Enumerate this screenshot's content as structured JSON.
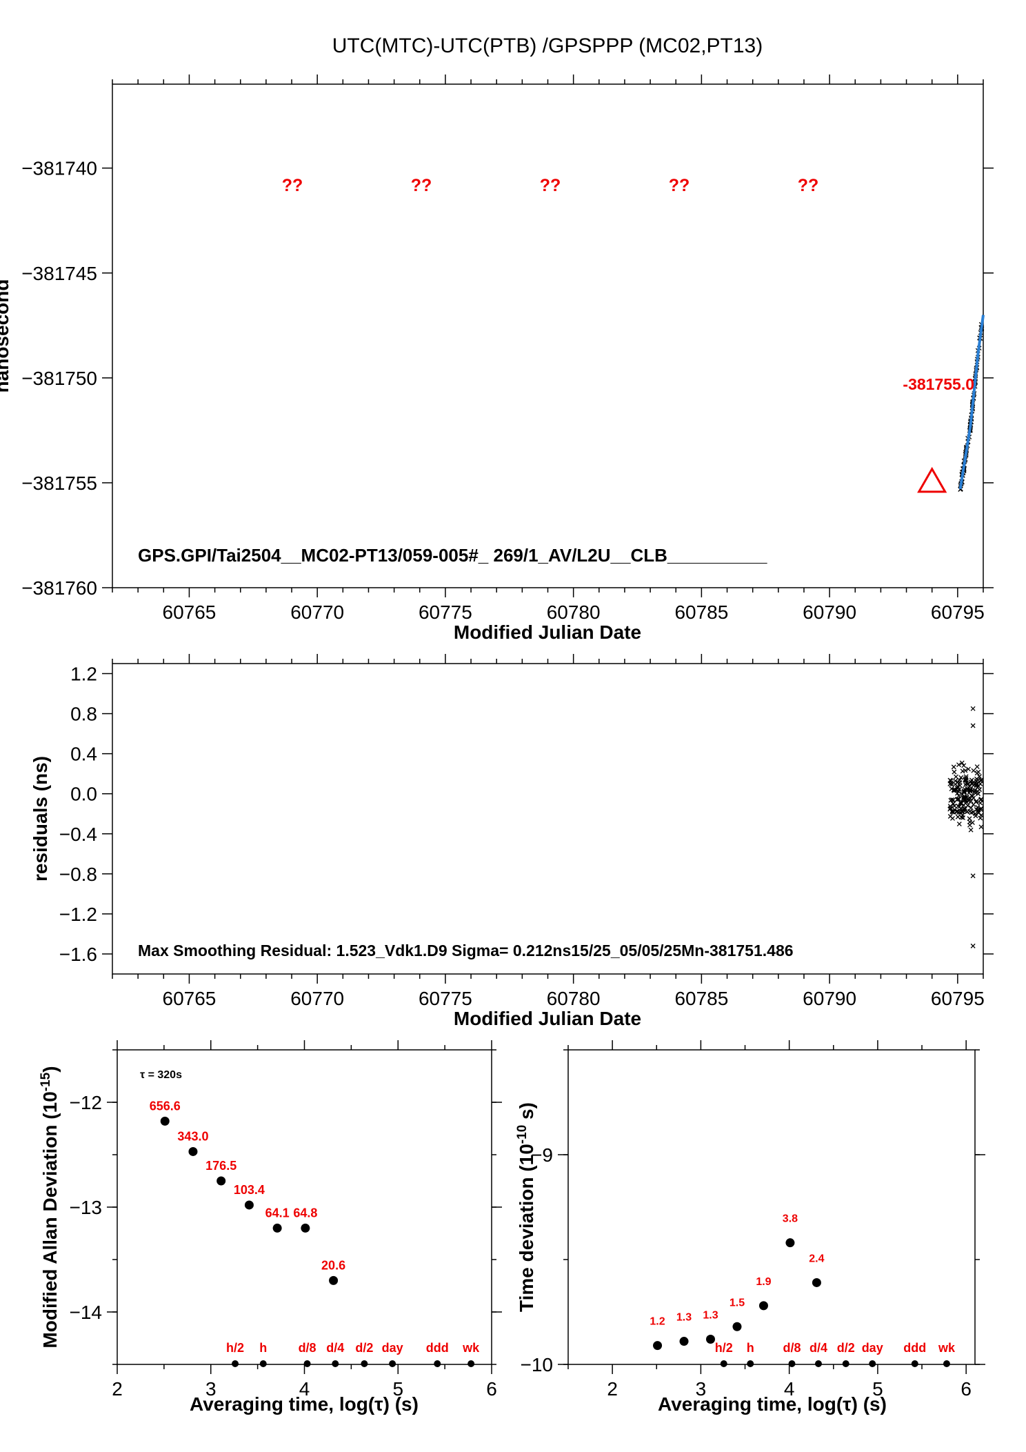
{
  "title": "UTC(MTC)-UTC(PTB)  /GPSPPP  (MC02,PT13)",
  "colors": {
    "marker": "#ee0000",
    "fit": "#2a7fd4",
    "points": "#000000"
  },
  "chart_data": [
    {
      "type": "scatter",
      "name": "time-difference",
      "ylabel": "nanosecond",
      "xlabel": "Modified Julian Date",
      "xlim": [
        60762,
        60796
      ],
      "ylim": [
        -381760,
        -381736
      ],
      "x_ticks": [
        "60765",
        "60770",
        "60775",
        "60780",
        "60785",
        "60790",
        "60795"
      ],
      "y_ticks": [
        "−381740",
        "−381745",
        "−381750",
        "−381755",
        "−381760"
      ],
      "unknown_markers": [
        "??",
        "??",
        "??",
        "??",
        "??"
      ],
      "marker_label": "-381755.0",
      "triangle_marker": {
        "x": 60794.0,
        "y": -381755.0
      },
      "footer": "GPS.GPI/Tai2504__MC02-PT13/059-005#_  269/1_AV/L2U__CLB__________",
      "fit_line": [
        [
          60795.1,
          -381755.3
        ],
        [
          60795.5,
          -381752.3
        ],
        [
          60795.8,
          -381748.8
        ],
        [
          60796.0,
          -381747.0
        ]
      ]
    },
    {
      "type": "scatter",
      "name": "residuals",
      "ylabel": "residuals (ns)",
      "xlabel": "Modified Julian Date",
      "xlim": [
        60762,
        60796
      ],
      "ylim": [
        -1.8,
        1.3
      ],
      "x_ticks": [
        "60765",
        "60770",
        "60775",
        "60780",
        "60785",
        "60790",
        "60795"
      ],
      "y_ticks": [
        "1.2",
        "0.8",
        "0.4",
        "0.0",
        "−0.4",
        "−0.8",
        "−1.2",
        "−1.6"
      ],
      "footer": "Max Smoothing Residual: 1.523_Vdk1.D9  Sigma= 0.212ns15/25_05/05/25Mn-381751.486",
      "outliers": [
        [
          60795.6,
          0.85
        ],
        [
          60795.6,
          0.68
        ],
        [
          60795.6,
          -0.82
        ],
        [
          60795.6,
          -1.52
        ]
      ]
    },
    {
      "type": "scatter",
      "name": "modified-allan-deviation",
      "ylabel": "Modified Allan Deviation (10",
      "ylabel_sup": "-15",
      "ylabel_end": ")",
      "xlabel": "Averaging time, log(τ) (s)",
      "xlim": [
        2,
        6
      ],
      "ylim": [
        -14.5,
        -11.5
      ],
      "x_ticks": [
        "2",
        "3",
        "4",
        "5",
        "6"
      ],
      "y_ticks": [
        "−12",
        "−13",
        "−14"
      ],
      "tau_note": "τ = 320s",
      "points": [
        {
          "x": 2.51,
          "y": -12.18,
          "label": "656.6"
        },
        {
          "x": 2.81,
          "y": -12.47,
          "label": "343.0"
        },
        {
          "x": 3.11,
          "y": -12.75,
          "label": "176.5"
        },
        {
          "x": 3.41,
          "y": -12.98,
          "label": "103.4"
        },
        {
          "x": 3.71,
          "y": -13.2,
          "label": "64.1"
        },
        {
          "x": 4.01,
          "y": -13.2,
          "label": "64.8"
        },
        {
          "x": 4.31,
          "y": -13.7,
          "label": "20.6"
        }
      ],
      "period_markers": [
        {
          "x": 3.26,
          "label": "h/2"
        },
        {
          "x": 3.56,
          "label": "h"
        },
        {
          "x": 4.03,
          "label": "d/8"
        },
        {
          "x": 4.33,
          "label": "d/4"
        },
        {
          "x": 4.64,
          "label": "d/2"
        },
        {
          "x": 4.94,
          "label": "day"
        },
        {
          "x": 5.42,
          "label": "ddd"
        },
        {
          "x": 5.78,
          "label": "wk"
        }
      ]
    },
    {
      "type": "scatter",
      "name": "time-deviation",
      "ylabel": "Time deviation (10",
      "ylabel_sup": "-10",
      "ylabel_end": " s)",
      "xlabel": "Averaging time, log(τ) (s)",
      "xlim": [
        1.5,
        6.1
      ],
      "ylim": [
        -10,
        -8.5
      ],
      "x_ticks": [
        "2",
        "3",
        "4",
        "5",
        "6"
      ],
      "y_ticks": [
        "−9",
        "−10"
      ],
      "points": [
        {
          "x": 2.51,
          "y": -9.91,
          "label": "1.2"
        },
        {
          "x": 2.81,
          "y": -9.89,
          "label": "1.3"
        },
        {
          "x": 3.11,
          "y": -9.88,
          "label": "1.3"
        },
        {
          "x": 3.41,
          "y": -9.82,
          "label": "1.5"
        },
        {
          "x": 3.71,
          "y": -9.72,
          "label": "1.9"
        },
        {
          "x": 4.01,
          "y": -9.42,
          "label": "3.8"
        },
        {
          "x": 4.31,
          "y": -9.61,
          "label": "2.4"
        }
      ],
      "period_markers": [
        {
          "x": 3.26,
          "label": "h/2"
        },
        {
          "x": 3.56,
          "label": "h"
        },
        {
          "x": 4.03,
          "label": "d/8"
        },
        {
          "x": 4.33,
          "label": "d/4"
        },
        {
          "x": 4.64,
          "label": "d/2"
        },
        {
          "x": 4.94,
          "label": "day"
        },
        {
          "x": 5.42,
          "label": "ddd"
        },
        {
          "x": 5.78,
          "label": "wk"
        }
      ]
    }
  ]
}
